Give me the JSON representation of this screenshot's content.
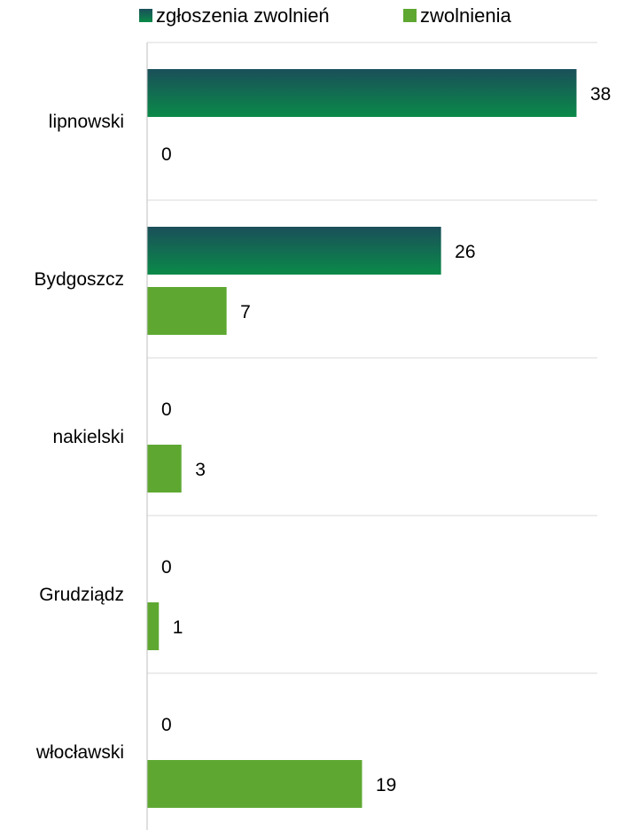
{
  "chart_data": {
    "type": "bar",
    "orientation": "horizontal",
    "categories": [
      "lipnowski",
      "Bydgoszcz",
      "nakielski",
      "Grudziądz",
      "włocławski"
    ],
    "series": [
      {
        "name": "zgłoszenia zwolnień",
        "values": [
          38,
          26,
          0,
          0,
          0
        ],
        "color": "#1a4f5a",
        "color_end": "#0a8a48"
      },
      {
        "name": "zwolnienia",
        "values": [
          0,
          7,
          3,
          1,
          19
        ],
        "color": "#5ea832"
      }
    ],
    "xlim": [
      0,
      40
    ],
    "grid": true,
    "legend": "top"
  }
}
